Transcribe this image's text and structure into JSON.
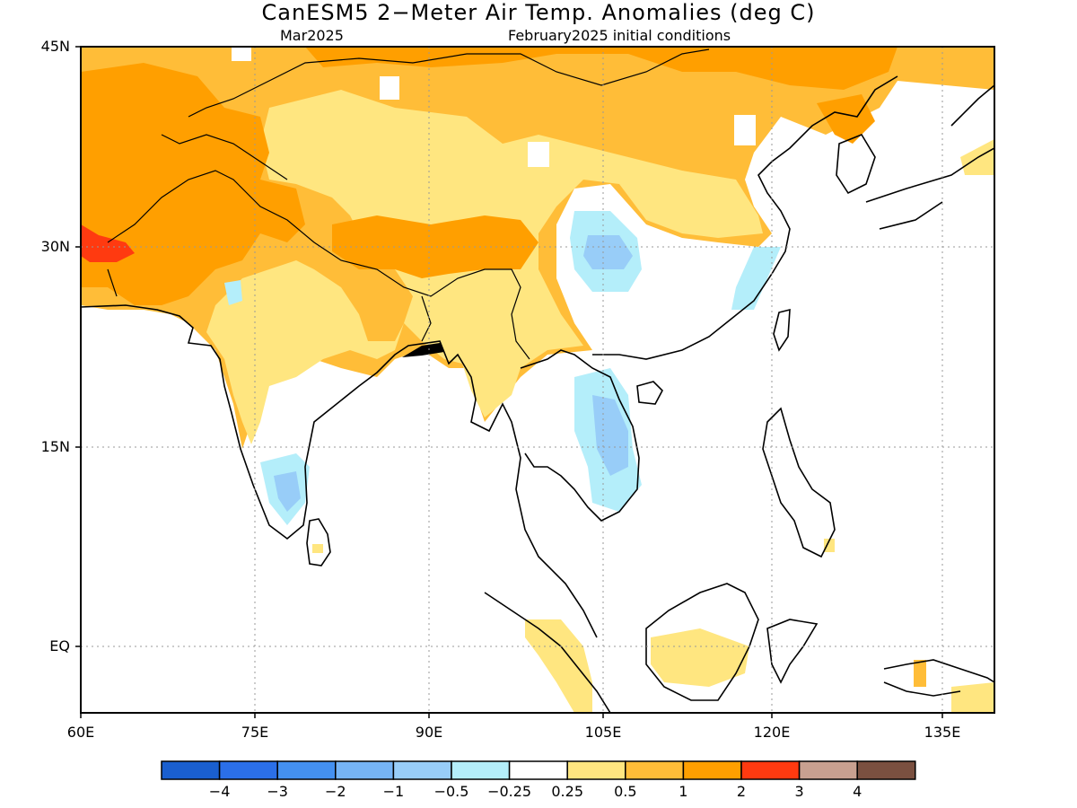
{
  "title": "CanESM5 2−Meter Air Temp. Anomalies (deg C)",
  "subtitle_left": "Mar2025",
  "subtitle_right": "February2025 initial conditions",
  "lat_labels": [
    "45N",
    "30N",
    "15N",
    "EQ"
  ],
  "lon_labels": [
    "60E",
    "75E",
    "90E",
    "105E",
    "120E",
    "135E"
  ],
  "colorbar": {
    "colors": [
      "#1a5fcf",
      "#2b6fe8",
      "#4490f0",
      "#76b4f5",
      "#98cdf8",
      "#b4eefa",
      "#ffffff",
      "#ffe680",
      "#ffbd38",
      "#ff9f00",
      "#ff3a10",
      "#c8a090",
      "#7a5040"
    ],
    "labels": [
      "−4",
      "−3",
      "−2",
      "−1",
      "−0.5",
      "−0.25",
      "0.25",
      "0.5",
      "1",
      "2",
      "3",
      "4"
    ]
  },
  "colors": {
    "land_outline": "#000000",
    "grid": "#999999",
    "frame": "#000000"
  }
}
